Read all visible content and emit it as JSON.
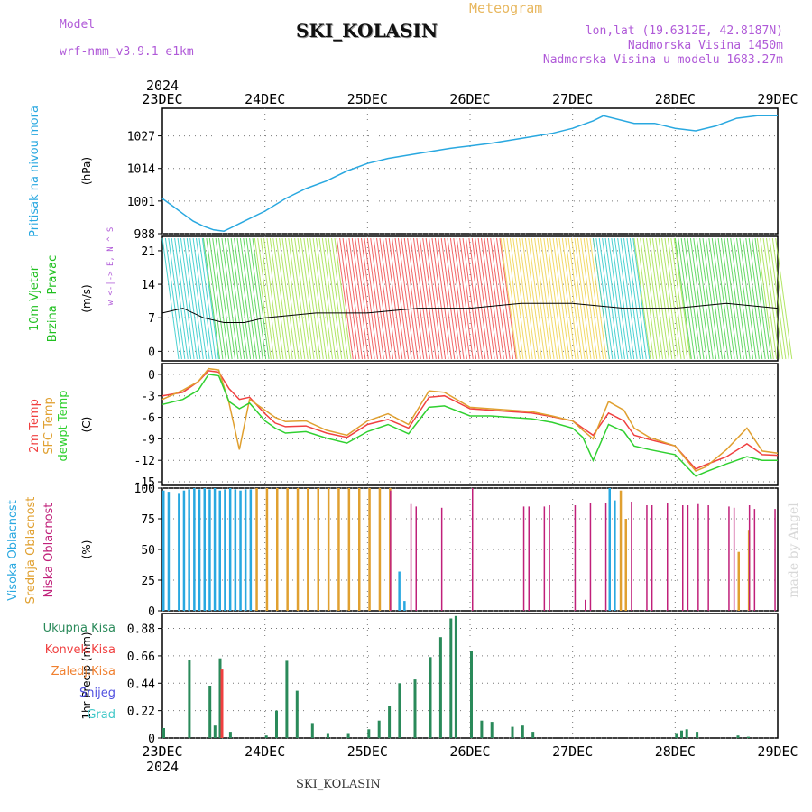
{
  "header": {
    "model_label": "Model",
    "model_name": "wrf-nmm_v3.9.1 e1km",
    "title": "SKI_KOLASIN",
    "meteogram": "Meteogram",
    "lonlat": "lon,lat (19.6312E, 42.8187N)",
    "altitude": "Nadmorska Visina 1450m",
    "model_altitude": "Nadmorska Visina u modelu 1683.27m",
    "year": "2024",
    "footer": "SKI_KOLASIN",
    "watermark": "made by Angel"
  },
  "colors": {
    "pressure": "#29a8e0",
    "temp2m": "#f04040",
    "sfctemp": "#e0a030",
    "dewpoint": "#30d030",
    "high_cloud": "#29a8e0",
    "mid_cloud": "#e0a030",
    "low_cloud": "#c0207a",
    "precip_total": "#2a8a5a",
    "precip_conv": "#f04040",
    "precip_frozen": "#f08030",
    "precip_snow": "#5050e0",
    "precip_graupel": "#40c8c8"
  },
  "chart_data": [
    {
      "type": "line",
      "panel": "pressure",
      "ylabel_left": "Pritisak na nivou mora",
      "unit": "(hPa)",
      "x_ticks": [
        "23DEC",
        "24DEC",
        "25DEC",
        "26DEC",
        "27DEC",
        "28DEC",
        "29DEC"
      ],
      "ylim": [
        988,
        1038
      ],
      "yticks": [
        988,
        1001,
        1014,
        1027
      ],
      "grid": true,
      "x_days": [
        0,
        0.1,
        0.2,
        0.3,
        0.4,
        0.5,
        0.6,
        0.7,
        0.8,
        1,
        1.2,
        1.4,
        1.6,
        1.8,
        2,
        2.2,
        2.5,
        2.8,
        3,
        3.2,
        3.5,
        3.8,
        4,
        4.2,
        4.3,
        4.6,
        4.8,
        5,
        5.2,
        5.4,
        5.6,
        5.8,
        6
      ],
      "series": [
        {
          "name": "Pritisak na nivou mora",
          "values": [
            1002,
            999,
            996,
            993,
            991,
            989.5,
            989,
            991,
            993,
            997,
            1002,
            1006,
            1009,
            1013,
            1016,
            1018,
            1020,
            1022,
            1023,
            1024,
            1026,
            1028,
            1030,
            1033,
            1035,
            1032,
            1032,
            1030,
            1029,
            1031,
            1034,
            1035,
            1035
          ]
        }
      ]
    },
    {
      "type": "line",
      "panel": "wind",
      "ylabel_left": "10m Vjetar Brzina i Pravac",
      "unit": "(m/s)",
      "legend_text": "w <-|-> E, N ^ S",
      "ylim": [
        -2,
        24
      ],
      "yticks": [
        0,
        7,
        14,
        21
      ],
      "grid": true,
      "x_days": [
        0,
        0.2,
        0.4,
        0.6,
        0.8,
        1,
        1.5,
        2,
        2.5,
        3,
        3.5,
        4,
        4.5,
        5,
        5.5,
        6
      ],
      "series": [
        {
          "name": "10m Vjetar",
          "values": [
            8,
            9,
            7,
            6,
            6,
            7,
            8,
            8,
            9,
            9,
            10,
            10,
            9,
            9,
            10,
            9
          ]
        }
      ]
    },
    {
      "type": "line",
      "panel": "temperature",
      "ylabel_left": [
        "2m Temp",
        "SFC Temp",
        "dewpt Temp"
      ],
      "unit": "(C)",
      "ylim": [
        -15.5,
        1.5
      ],
      "yticks": [
        0,
        -3,
        -6,
        -9,
        -12,
        -15
      ],
      "grid": true,
      "x_days": [
        0,
        0.2,
        0.35,
        0.45,
        0.55,
        0.65,
        0.75,
        0.85,
        1,
        1.1,
        1.2,
        1.4,
        1.6,
        1.8,
        2,
        2.2,
        2.4,
        2.6,
        2.75,
        3,
        3.2,
        3.4,
        3.6,
        3.8,
        4,
        4.1,
        4.2,
        4.35,
        4.5,
        4.6,
        4.75,
        5,
        5.2,
        5.3,
        5.5,
        5.7,
        5.85,
        6
      ],
      "series": [
        {
          "name": "2m Temp",
          "values": [
            -3,
            -2.5,
            -1,
            0.5,
            0.3,
            -2,
            -3.5,
            -3.2,
            -5.5,
            -6.8,
            -7.3,
            -7.2,
            -8.2,
            -8.8,
            -7,
            -6.3,
            -7.5,
            -3.2,
            -3,
            -4.8,
            -5,
            -5.2,
            -5.4,
            -5.9,
            -6.5,
            -7.5,
            -8.5,
            -5.4,
            -6.5,
            -8.5,
            -9.1,
            -10,
            -13.2,
            -12.6,
            -11.5,
            -9.7,
            -11.2,
            -11.3
          ]
        },
        {
          "name": "SFC Temp",
          "values": [
            -3.5,
            -2.2,
            -1,
            0.8,
            0.6,
            -4,
            -10.5,
            -3.5,
            -5,
            -6,
            -6.6,
            -6.5,
            -7.8,
            -8.5,
            -6.5,
            -5.5,
            -7,
            -2.3,
            -2.5,
            -4.6,
            -4.8,
            -5,
            -5.2,
            -5.8,
            -6.5,
            -7.8,
            -9,
            -3.8,
            -5,
            -7.5,
            -8.8,
            -10,
            -13.5,
            -12.9,
            -10.5,
            -7.5,
            -10.7,
            -11
          ]
        },
        {
          "name": "dewpt Temp",
          "values": [
            -4.2,
            -3.5,
            -2.2,
            0,
            -0.2,
            -3.8,
            -4.8,
            -4,
            -6.5,
            -7.5,
            -8.2,
            -8,
            -8.9,
            -9.6,
            -8,
            -7,
            -8.3,
            -4.6,
            -4.4,
            -5.8,
            -5.8,
            -6,
            -6.2,
            -6.7,
            -7.5,
            -8.8,
            -12,
            -7,
            -8,
            -10,
            -10.5,
            -11.2,
            -14.2,
            -13.6,
            -12.5,
            -11.5,
            -12,
            -12
          ]
        }
      ]
    },
    {
      "type": "bar",
      "panel": "cloud",
      "ylabel_left": [
        "Visoka Oblacnost",
        "Srednja Oblacnost",
        "Niska Oblacnost"
      ],
      "unit": "(%)",
      "ylim": [
        0,
        100
      ],
      "yticks": [
        0,
        25,
        50,
        75,
        100
      ],
      "grid": true,
      "series": [
        {
          "name": "Visoka Oblacnost",
          "x_days": [
            0,
            0.05,
            0.15,
            0.2,
            0.25,
            0.3,
            0.35,
            0.4,
            0.45,
            0.5,
            0.55,
            0.6,
            0.65,
            0.7,
            0.75,
            0.8,
            0.85,
            2.3,
            2.35,
            4.35,
            4.4
          ],
          "values": [
            98,
            97,
            96,
            98,
            99,
            100,
            99,
            100,
            99,
            100,
            98,
            99,
            100,
            99,
            98,
            99,
            99,
            32,
            8,
            100,
            90
          ]
        },
        {
          "name": "Srednja Oblacnost",
          "x_days": [
            0.9,
            1,
            1.1,
            1.2,
            1.3,
            1.4,
            1.5,
            1.6,
            1.7,
            1.8,
            1.9,
            2,
            2.1,
            2.2,
            4.45,
            4.5,
            5.6,
            5.7
          ],
          "values": [
            100,
            100,
            100,
            100,
            100,
            100,
            100,
            100,
            100,
            100,
            100,
            100,
            100,
            100,
            98,
            75,
            48,
            66
          ]
        },
        {
          "name": "Niska Oblacnost",
          "x_days": [
            2.2,
            2.4,
            2.45,
            2.7,
            3,
            3.5,
            3.55,
            3.7,
            3.75,
            4,
            4.1,
            4.15,
            4.3,
            4.55,
            4.7,
            4.75,
            4.9,
            5.05,
            5.1,
            5.2,
            5.3,
            5.5,
            5.55,
            5.7,
            5.75,
            5.95
          ],
          "values": [
            98,
            87,
            85,
            84,
            100,
            85,
            85,
            85,
            86,
            86,
            9,
            88,
            88,
            89,
            86,
            86,
            88,
            86,
            86,
            87,
            86,
            85,
            84,
            86,
            83,
            83
          ]
        }
      ]
    },
    {
      "type": "bar",
      "panel": "precip",
      "ylabel_left": [
        "Ukupna Kisa",
        "Konvek.Kisa",
        "Zaledj.Kisa",
        "Snijeg",
        "Grad"
      ],
      "unit": "1hr Precip (mm)",
      "ylim": [
        0,
        1.0
      ],
      "yticks": [
        0,
        0.22,
        0.44,
        0.66,
        0.88
      ],
      "grid": true,
      "x_ticks": [
        "23DEC",
        "24DEC",
        "25DEC",
        "26DEC",
        "27DEC",
        "28DEC",
        "29DEC"
      ],
      "x_days": [
        0,
        0.25,
        0.45,
        0.5,
        0.55,
        0.65,
        1,
        1.1,
        1.2,
        1.3,
        1.45,
        1.6,
        1.8,
        2,
        2.1,
        2.2,
        2.3,
        2.45,
        2.6,
        2.7,
        2.8,
        2.85,
        3,
        3.1,
        3.2,
        3.4,
        3.5,
        3.6,
        4,
        4.2,
        4.5,
        5,
        5.05,
        5.1,
        5.2,
        5.6,
        5.7
      ],
      "series": [
        {
          "name": "Ukupna Kisa",
          "values": [
            0.08,
            0.63,
            0.42,
            0.1,
            0.64,
            0.05,
            0.02,
            0.22,
            0.62,
            0.38,
            0.12,
            0.04,
            0.04,
            0.07,
            0.14,
            0.26,
            0.44,
            0.47,
            0.65,
            0.81,
            0.96,
            0.98,
            0.7,
            0.14,
            0.13,
            0.09,
            0.1,
            0.05,
            0,
            0,
            0,
            0.04,
            0.06,
            0.07,
            0.05,
            0.02,
            0.01
          ]
        },
        {
          "name": "Konvek.Kisa",
          "values": [
            0,
            0,
            0,
            0,
            0.55,
            0,
            0,
            0,
            0,
            0,
            0,
            0,
            0,
            0,
            0,
            0,
            0,
            0,
            0,
            0,
            0,
            0,
            0,
            0,
            0,
            0,
            0,
            0,
            0,
            0,
            0,
            0,
            0,
            0,
            0,
            0,
            0
          ]
        }
      ]
    }
  ]
}
